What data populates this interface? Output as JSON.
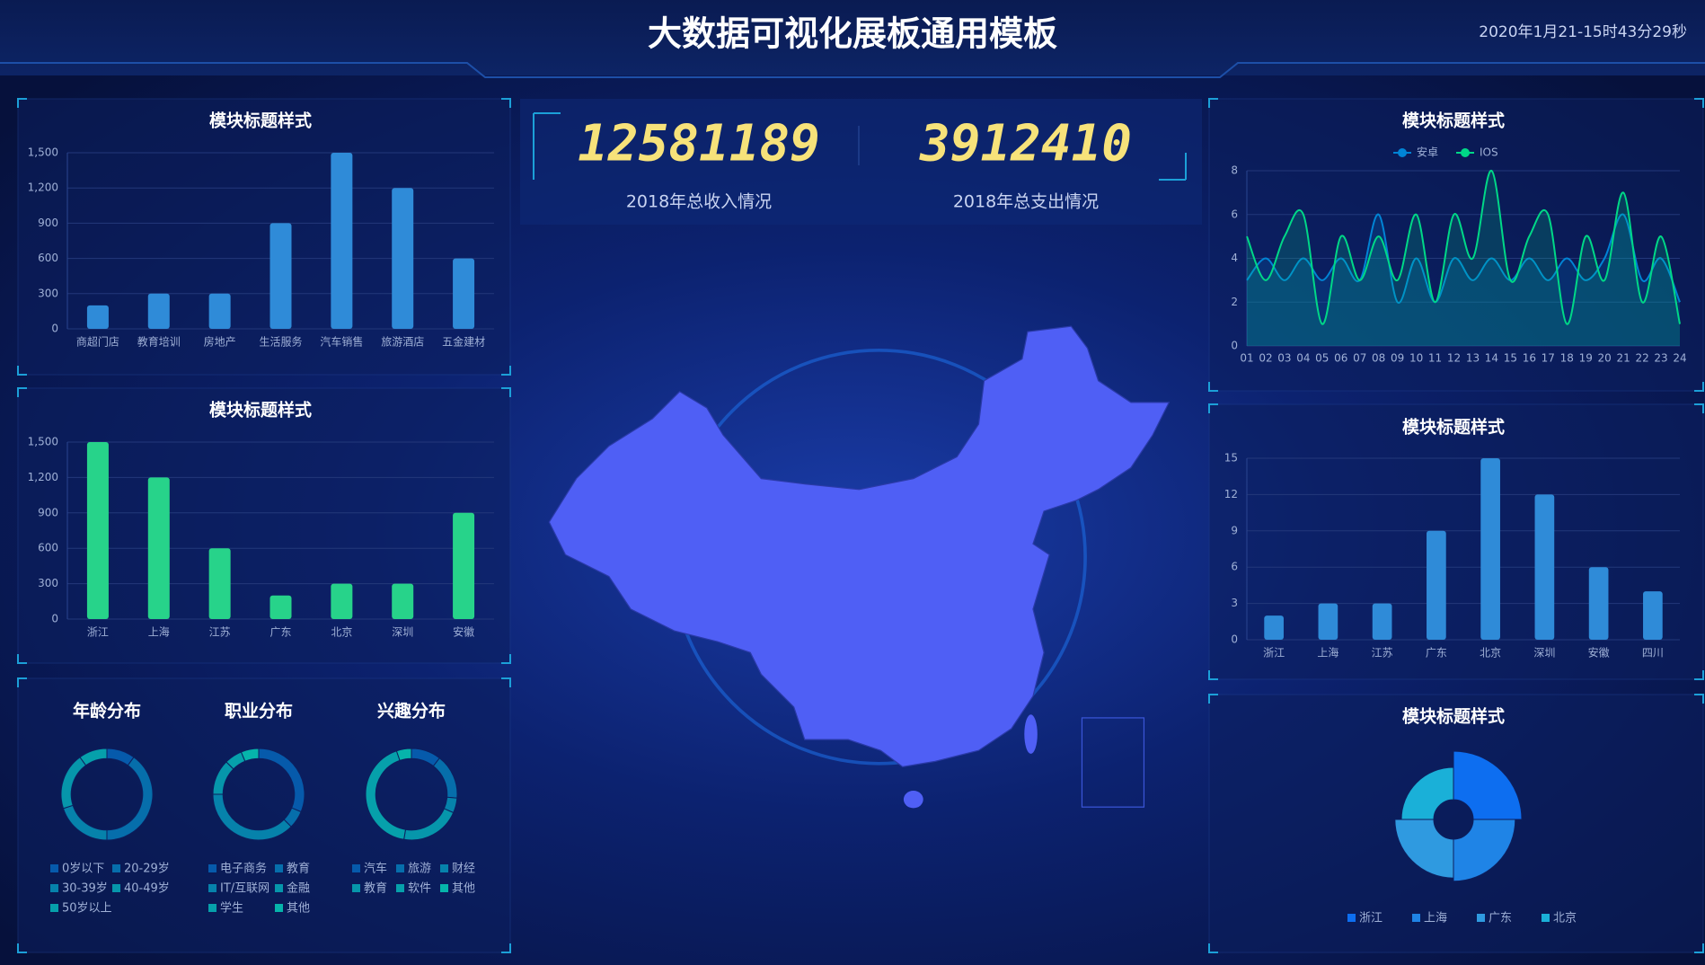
{
  "header": {
    "title": "大数据可视化展板通用模板",
    "time": "2020年1月21-15时43分29秒"
  },
  "kpis": [
    {
      "value": 12581189,
      "label": "2018年总收入情况"
    },
    {
      "value": 3912410,
      "label": "2018年总支出情况"
    }
  ],
  "chart_data": [
    {
      "type": "bar",
      "title": "模块标题样式",
      "categories": [
        "商超门店",
        "教育培训",
        "房地产",
        "生活服务",
        "汽车销售",
        "旅游酒店",
        "五金建材"
      ],
      "values": [
        200,
        300,
        300,
        900,
        1500,
        1200,
        600
      ],
      "color": "#2f8bd8",
      "ylim": [
        0,
        1500
      ],
      "yticks": [
        0,
        300,
        600,
        900,
        {
          "value": 1200,
          "label": "1,200"
        },
        {
          "value": 1500,
          "label": "1,500"
        }
      ],
      "grid": true
    },
    {
      "type": "bar",
      "title": "模块标题样式",
      "categories": [
        "浙江",
        "上海",
        "江苏",
        "广东",
        "北京",
        "深圳",
        "安徽"
      ],
      "values": [
        1500,
        1200,
        600,
        200,
        300,
        300,
        900
      ],
      "color": "#27d38a",
      "ylim": [
        0,
        1500
      ],
      "yticks": [
        0,
        300,
        600,
        900,
        {
          "value": 1200,
          "label": "1,200"
        },
        {
          "value": 1500,
          "label": "1,500"
        }
      ],
      "grid": true
    },
    {
      "type": "pie",
      "title": "年龄分布",
      "donut": true,
      "categories": [
        "0岁以下",
        "20-29岁",
        "30-39岁",
        "40-49岁",
        "50岁以上"
      ],
      "values": [
        1,
        4,
        2,
        2,
        1
      ],
      "colors": [
        "#065aab",
        "#066eab",
        "#0682ab",
        "#0696ab",
        "#06a0ab"
      ]
    },
    {
      "type": "pie",
      "title": "职业分布",
      "donut": true,
      "categories": [
        "电子商务",
        "教育",
        "IT/互联网",
        "金融",
        "学生",
        "其他"
      ],
      "values": [
        5,
        1,
        6,
        2,
        1,
        1
      ],
      "colors": [
        "#065aab",
        "#066eab",
        "#0682ab",
        "#0696ab",
        "#06a0ab",
        "#06b4ab"
      ]
    },
    {
      "type": "pie",
      "title": "兴趣分布",
      "donut": true,
      "categories": [
        "汽车",
        "旅游",
        "财经",
        "教育",
        "软件",
        "其他"
      ],
      "values": [
        2,
        3,
        1,
        4,
        8,
        1
      ],
      "colors": [
        "#065aab",
        "#066eab",
        "#0682ab",
        "#0696ab",
        "#06a0ab",
        "#06b4ab"
      ]
    },
    {
      "type": "line",
      "title": "模块标题样式",
      "categories": [
        "01",
        "02",
        "03",
        "04",
        "05",
        "06",
        "07",
        "08",
        "09",
        "10",
        "11",
        "12",
        "13",
        "14",
        "15",
        "16",
        "17",
        "18",
        "19",
        "20",
        "21",
        "22",
        "23",
        "24"
      ],
      "series": [
        {
          "name": "安卓",
          "color": "#0184d5",
          "values": [
            3,
            4,
            3,
            4,
            3,
            4,
            3,
            6,
            2,
            4,
            2,
            4,
            3,
            4,
            3,
            4,
            3,
            4,
            3,
            4,
            6,
            3,
            4,
            2
          ]
        },
        {
          "name": "IOS",
          "color": "#00d887",
          "values": [
            5,
            3,
            5,
            6,
            1,
            5,
            3,
            5,
            3,
            6,
            2,
            6,
            4,
            8,
            3,
            5,
            6,
            1,
            5,
            3,
            7,
            2,
            5,
            1
          ]
        }
      ],
      "ylim": [
        0,
        8
      ],
      "yticks": [
        0,
        2,
        4,
        6,
        8
      ],
      "grid": true
    },
    {
      "type": "bar",
      "title": "模块标题样式",
      "categories": [
        "浙江",
        "上海",
        "江苏",
        "广东",
        "北京",
        "深圳",
        "安徽",
        "四川"
      ],
      "values": [
        2,
        3,
        3,
        9,
        15,
        12,
        6,
        4
      ],
      "color": "#2f8bd8",
      "ylim": [
        0,
        15
      ],
      "yticks": [
        0,
        3,
        6,
        9,
        12,
        15
      ],
      "grid": true
    },
    {
      "type": "pie",
      "title": "模块标题样式",
      "rose": true,
      "categories": [
        "浙江",
        "上海",
        "广东",
        "北京"
      ],
      "values": [
        30,
        26,
        24,
        20
      ],
      "colors": [
        "#0d6ef0",
        "#1f84e6",
        "#2f9ae0",
        "#1ab0d8"
      ]
    }
  ]
}
